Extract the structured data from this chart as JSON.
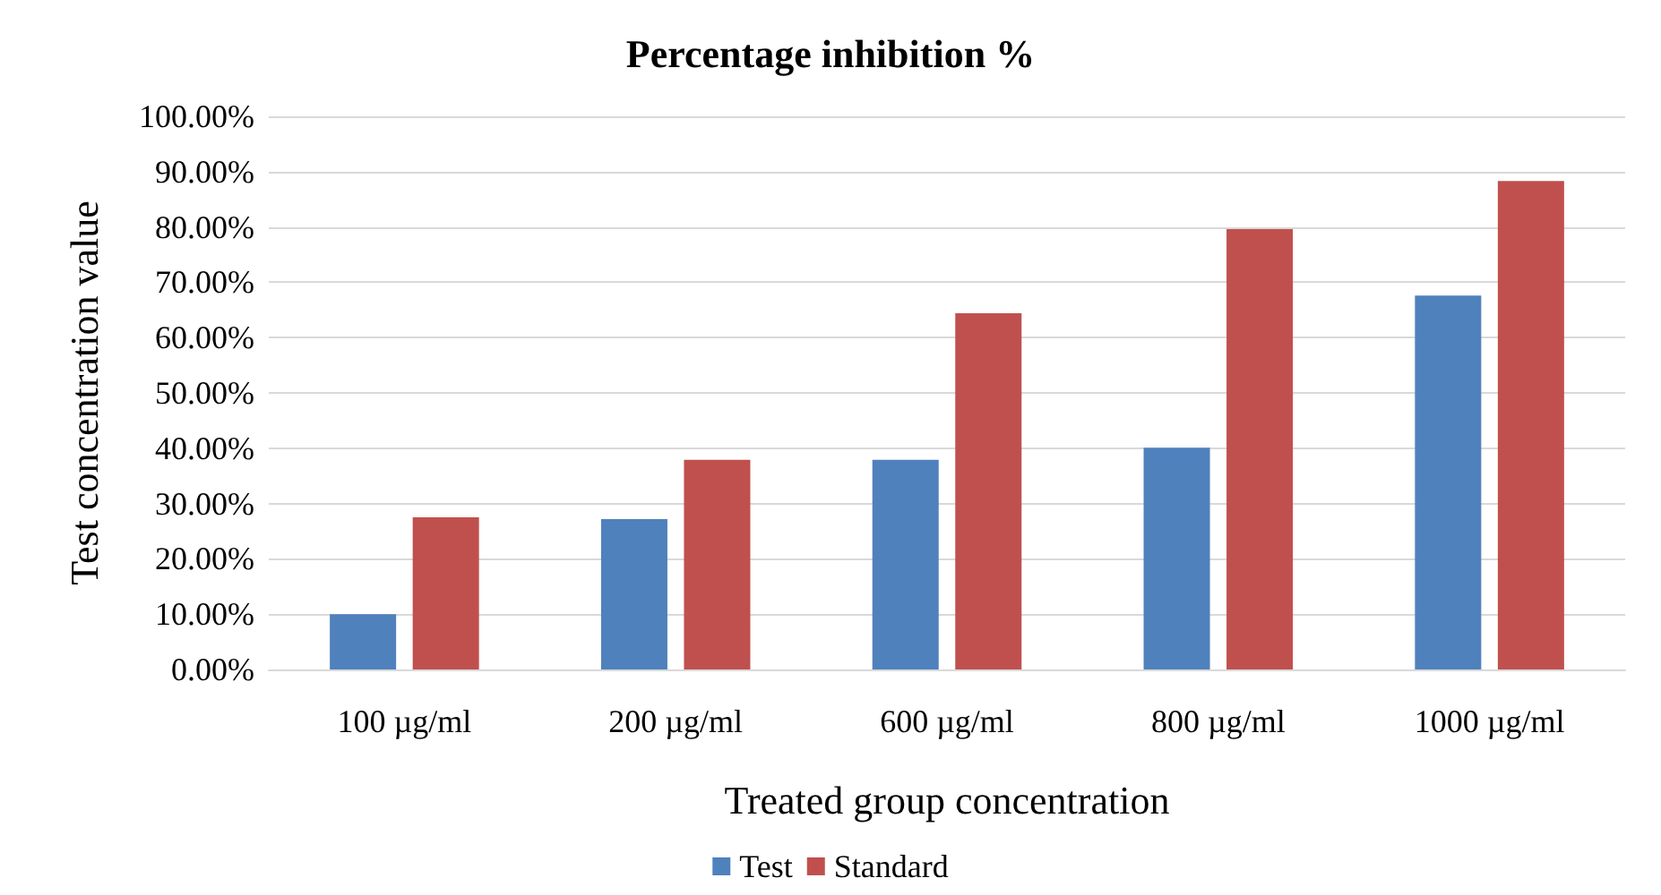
{
  "chart_data": {
    "type": "bar",
    "title": "Percentage inhibition %",
    "xlabel": "Treated group concentration",
    "ylabel": "Test concentration value",
    "categories": [
      "100 µg/ml",
      "200 µg/ml",
      "600 µg/ml",
      "800 µg/ml",
      "1000 µg/ml"
    ],
    "series": [
      {
        "name": "Test",
        "color": "#4f81bd",
        "values": [
          10.0,
          27.2,
          37.9,
          40.1,
          67.6
        ]
      },
      {
        "name": "Standard",
        "color": "#c0504d",
        "values": [
          27.5,
          37.9,
          64.4,
          79.6,
          88.3
        ]
      }
    ],
    "ylim": [
      0,
      100
    ],
    "yticks": [
      {
        "value": 0,
        "label": "0.00%"
      },
      {
        "value": 10,
        "label": "10.00%"
      },
      {
        "value": 20,
        "label": "20.00%"
      },
      {
        "value": 30,
        "label": "30.00%"
      },
      {
        "value": 40,
        "label": "40.00%"
      },
      {
        "value": 50,
        "label": "50.00%"
      },
      {
        "value": 60,
        "label": "60.00%"
      },
      {
        "value": 70,
        "label": "70.00%"
      },
      {
        "value": 80,
        "label": "80.00%"
      },
      {
        "value": 90,
        "label": "90.00%"
      },
      {
        "value": 100,
        "label": "100.00%"
      }
    ],
    "grid": "y",
    "legend": "bottom"
  }
}
